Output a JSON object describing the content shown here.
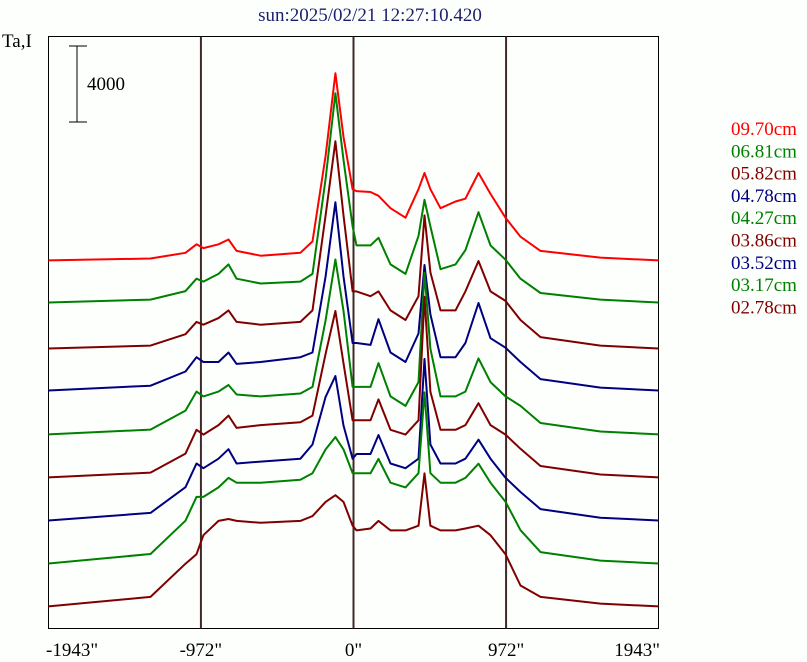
{
  "chart_data": {
    "type": "line",
    "title": "sun:2025/02/21 12:27:10.420",
    "ylabel": "Ta,I",
    "scale_bar_label": "4000",
    "scale_bar_value": 4000,
    "xlim": [
      -1943,
      1943
    ],
    "ylim": [
      -1160,
      29980
    ],
    "x_ticks": [
      {
        "value": -1943,
        "label": "-1943\""
      },
      {
        "value": -972,
        "label": "-972\""
      },
      {
        "value": 0,
        "label": "0\""
      },
      {
        "value": 972,
        "label": "972\""
      },
      {
        "value": 1943,
        "label": "1943\""
      }
    ],
    "vertical_markers": [
      -972,
      0,
      972
    ],
    "colors": {
      "title": "#1e1e6e",
      "marker": "#402828",
      "axis": "#000000"
    },
    "x": [
      -1943,
      -1293,
      -1070,
      -1000,
      -956,
      -860,
      -796,
      -745,
      -592,
      -338,
      -261,
      -178,
      -115,
      -64,
      -6,
      19,
      108,
      159,
      236,
      331,
      414,
      452,
      490,
      554,
      650,
      713,
      796,
      873,
      968,
      1064,
      1191,
      1573,
      1943
    ],
    "series": [
      {
        "name": "09.70cm",
        "color": "#ff0000",
        "offset": 18200,
        "values": [
          0,
          100,
          400,
          850,
          650,
          850,
          1100,
          500,
          250,
          400,
          1000,
          5500,
          9850,
          6500,
          3750,
          3650,
          3600,
          3400,
          2750,
          2250,
          3750,
          4600,
          3750,
          2750,
          3100,
          3250,
          4600,
          3500,
          2250,
          1250,
          500,
          150,
          0
        ]
      },
      {
        "name": "06.81cm",
        "color": "#008000",
        "offset": 15990,
        "values": [
          0,
          150,
          600,
          1250,
          1100,
          1500,
          2000,
          1250,
          1000,
          1100,
          1500,
          6500,
          11000,
          7500,
          4000,
          3000,
          3000,
          3400,
          2000,
          1500,
          3500,
          5400,
          4000,
          1750,
          2000,
          2750,
          4750,
          3000,
          2250,
          1250,
          500,
          150,
          0
        ]
      },
      {
        "name": "05.82cm",
        "color": "#800000",
        "offset": 13570,
        "values": [
          0,
          150,
          750,
          1400,
          1250,
          1600,
          2000,
          1400,
          1250,
          1400,
          2000,
          7000,
          10900,
          7000,
          3000,
          3000,
          2750,
          3000,
          2000,
          1500,
          2750,
          7000,
          4000,
          2000,
          2000,
          3000,
          4600,
          3000,
          2500,
          1500,
          600,
          150,
          0
        ]
      },
      {
        "name": "04.78cm",
        "color": "#000080",
        "offset": 11360,
        "values": [
          0,
          250,
          1000,
          1750,
          1500,
          1500,
          2000,
          1400,
          1500,
          1750,
          2000,
          6000,
          9900,
          6000,
          2500,
          2500,
          2400,
          3750,
          2000,
          1500,
          3000,
          6600,
          4000,
          1750,
          1750,
          2500,
          4600,
          2750,
          2250,
          1500,
          600,
          150,
          0
        ]
      },
      {
        "name": "04.27cm",
        "color": "#008000",
        "offset": 9050,
        "values": [
          0,
          250,
          1250,
          2250,
          2000,
          2250,
          2600,
          2100,
          2000,
          2150,
          2500,
          6000,
          9200,
          6500,
          2500,
          2500,
          2500,
          3750,
          2000,
          1500,
          2750,
          8500,
          4500,
          2000,
          2000,
          2250,
          4000,
          2750,
          2000,
          1500,
          600,
          150,
          0
        ]
      },
      {
        "name": "03.86cm",
        "color": "#800000",
        "offset": 6790,
        "values": [
          0,
          250,
          1250,
          2500,
          2250,
          2750,
          3250,
          2600,
          2750,
          2900,
          3250,
          6500,
          8750,
          6000,
          3000,
          3000,
          3000,
          4100,
          2500,
          2250,
          3000,
          9500,
          4500,
          2500,
          2500,
          2750,
          3900,
          2750,
          2250,
          1500,
          600,
          150,
          0
        ]
      },
      {
        "name": "03.52cm",
        "color": "#000080",
        "offset": 4520,
        "values": [
          0,
          400,
          1750,
          3000,
          2750,
          3250,
          3750,
          3000,
          3100,
          3250,
          4000,
          6500,
          7600,
          5000,
          3250,
          3500,
          3500,
          4500,
          3000,
          2750,
          3250,
          8500,
          4000,
          3000,
          3000,
          3250,
          4250,
          3250,
          2250,
          1500,
          600,
          150,
          0
        ]
      },
      {
        "name": "03.17cm",
        "color": "#008000",
        "offset": 2260,
        "values": [
          0,
          500,
          2250,
          3500,
          3500,
          4000,
          4500,
          4250,
          4250,
          4400,
          4750,
          6000,
          6650,
          6000,
          4750,
          4750,
          4750,
          5500,
          4250,
          4000,
          4750,
          9000,
          4750,
          4250,
          4250,
          4500,
          5250,
          4250,
          3250,
          1750,
          600,
          150,
          0
        ]
      },
      {
        "name": "02.78cm",
        "color": "#800000",
        "offset": 0,
        "values": [
          0,
          500,
          2250,
          2750,
          3750,
          4500,
          4600,
          4500,
          4400,
          4500,
          4750,
          5500,
          5850,
          5500,
          4250,
          4000,
          4100,
          4500,
          4000,
          4000,
          4250,
          7000,
          4250,
          4000,
          4000,
          4100,
          4250,
          3750,
          2750,
          1100,
          500,
          150,
          0
        ]
      }
    ]
  }
}
